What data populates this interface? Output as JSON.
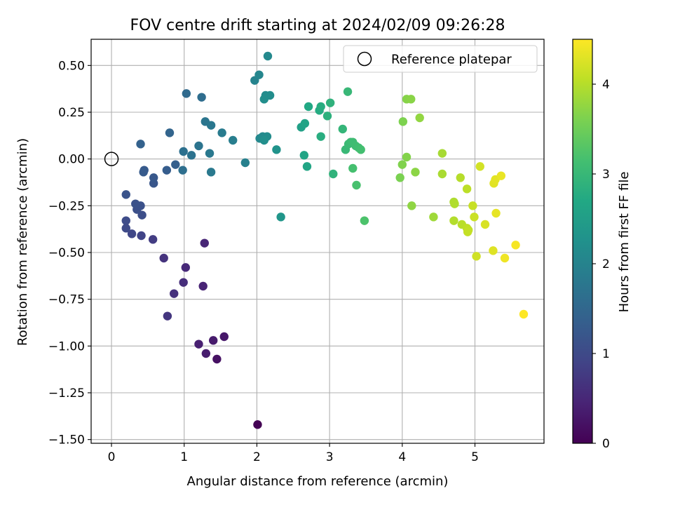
{
  "chart_data": {
    "type": "scatter",
    "title": "FOV centre drift starting at 2024/02/09 09:26:28",
    "xlabel": "Angular distance from reference (arcmin)",
    "ylabel": "Rotation from reference (arcmin)",
    "xlim": [
      -0.28,
      5.95
    ],
    "ylim": [
      -1.52,
      0.64
    ],
    "xticks": [
      0,
      1,
      2,
      3,
      4,
      5
    ],
    "xtick_labels": [
      "0",
      "1",
      "2",
      "3",
      "4",
      "5"
    ],
    "yticks": [
      -1.5,
      -1.25,
      -1.0,
      -0.75,
      -0.5,
      -0.25,
      0.0,
      0.25,
      0.5
    ],
    "ytick_labels": [
      "−1.50",
      "−1.25",
      "−1.00",
      "−0.75",
      "−0.50",
      "−0.25",
      "0.00",
      "0.25",
      "0.50"
    ],
    "grid": true,
    "legend": {
      "position": "top-right",
      "label": "Reference platepar"
    },
    "reference_point": {
      "x": 0,
      "y": 0
    },
    "colorbar": {
      "label": "Hours from first FF file",
      "colormap": "viridis",
      "range": [
        0,
        4.5
      ],
      "ticks": [
        0,
        1,
        2,
        3,
        4
      ],
      "tick_labels": [
        "0",
        "1",
        "2",
        "3",
        "4"
      ]
    },
    "points": [
      {
        "x": 2.01,
        "y": -1.42,
        "t": 0.0
      },
      {
        "x": 1.45,
        "y": -1.07,
        "t": 0.2
      },
      {
        "x": 1.55,
        "y": -0.95,
        "t": 0.28
      },
      {
        "x": 1.4,
        "y": -0.97,
        "t": 0.33
      },
      {
        "x": 1.3,
        "y": -1.04,
        "t": 0.36
      },
      {
        "x": 1.2,
        "y": -0.99,
        "t": 0.4
      },
      {
        "x": 1.26,
        "y": -0.68,
        "t": 0.45
      },
      {
        "x": 1.28,
        "y": -0.45,
        "t": 0.48
      },
      {
        "x": 1.02,
        "y": -0.58,
        "t": 0.52
      },
      {
        "x": 0.99,
        "y": -0.66,
        "t": 0.58
      },
      {
        "x": 0.86,
        "y": -0.72,
        "t": 0.62
      },
      {
        "x": 0.72,
        "y": -0.53,
        "t": 0.66
      },
      {
        "x": 0.77,
        "y": -0.84,
        "t": 0.7
      },
      {
        "x": 0.57,
        "y": -0.43,
        "t": 0.8
      },
      {
        "x": 0.41,
        "y": -0.41,
        "t": 0.9
      },
      {
        "x": 0.28,
        "y": -0.4,
        "t": 0.95
      },
      {
        "x": 0.2,
        "y": -0.37,
        "t": 1.0
      },
      {
        "x": 0.2,
        "y": -0.33,
        "t": 1.03
      },
      {
        "x": 0.42,
        "y": -0.3,
        "t": 1.06
      },
      {
        "x": 0.35,
        "y": -0.27,
        "t": 1.1
      },
      {
        "x": 0.4,
        "y": -0.25,
        "t": 1.12
      },
      {
        "x": 0.33,
        "y": -0.24,
        "t": 1.14
      },
      {
        "x": 0.2,
        "y": -0.19,
        "t": 1.17
      },
      {
        "x": 0.58,
        "y": -0.13,
        "t": 1.2
      },
      {
        "x": 0.58,
        "y": -0.1,
        "t": 1.23
      },
      {
        "x": 0.45,
        "y": -0.06,
        "t": 1.26
      },
      {
        "x": 0.44,
        "y": -0.07,
        "t": 1.28
      },
      {
        "x": 0.76,
        "y": -0.06,
        "t": 1.32
      },
      {
        "x": 0.88,
        "y": -0.03,
        "t": 1.36
      },
      {
        "x": 0.4,
        "y": 0.08,
        "t": 1.4
      },
      {
        "x": 0.8,
        "y": 0.14,
        "t": 1.45
      },
      {
        "x": 1.03,
        "y": 0.35,
        "t": 1.55
      },
      {
        "x": 1.24,
        "y": 0.33,
        "t": 1.6
      },
      {
        "x": 0.98,
        "y": -0.06,
        "t": 1.63
      },
      {
        "x": 0.99,
        "y": 0.04,
        "t": 1.66
      },
      {
        "x": 1.1,
        "y": 0.02,
        "t": 1.7
      },
      {
        "x": 1.2,
        "y": 0.07,
        "t": 1.72
      },
      {
        "x": 1.29,
        "y": 0.2,
        "t": 1.75
      },
      {
        "x": 1.37,
        "y": 0.18,
        "t": 1.78
      },
      {
        "x": 1.35,
        "y": 0.03,
        "t": 1.8
      },
      {
        "x": 1.37,
        "y": -0.07,
        "t": 1.82
      },
      {
        "x": 1.52,
        "y": 0.14,
        "t": 1.85
      },
      {
        "x": 1.67,
        "y": 0.1,
        "t": 1.9
      },
      {
        "x": 1.84,
        "y": -0.02,
        "t": 1.95
      },
      {
        "x": 1.97,
        "y": 0.42,
        "t": 2.0
      },
      {
        "x": 2.03,
        "y": 0.45,
        "t": 2.05
      },
      {
        "x": 2.15,
        "y": 0.55,
        "t": 2.1
      },
      {
        "x": 2.12,
        "y": 0.34,
        "t": 2.15
      },
      {
        "x": 2.18,
        "y": 0.34,
        "t": 2.18
      },
      {
        "x": 2.1,
        "y": 0.32,
        "t": 2.2
      },
      {
        "x": 2.04,
        "y": 0.11,
        "t": 2.08
      },
      {
        "x": 2.08,
        "y": 0.12,
        "t": 2.12
      },
      {
        "x": 2.14,
        "y": 0.12,
        "t": 2.16
      },
      {
        "x": 2.1,
        "y": 0.1,
        "t": 2.22
      },
      {
        "x": 2.27,
        "y": 0.05,
        "t": 2.28
      },
      {
        "x": 2.33,
        "y": -0.31,
        "t": 2.35
      },
      {
        "x": 2.61,
        "y": 0.17,
        "t": 2.55
      },
      {
        "x": 2.66,
        "y": 0.19,
        "t": 2.6
      },
      {
        "x": 2.65,
        "y": 0.02,
        "t": 2.62
      },
      {
        "x": 2.69,
        "y": -0.04,
        "t": 2.65
      },
      {
        "x": 2.71,
        "y": 0.28,
        "t": 2.7
      },
      {
        "x": 2.86,
        "y": 0.26,
        "t": 2.75
      },
      {
        "x": 2.88,
        "y": 0.28,
        "t": 2.78
      },
      {
        "x": 2.88,
        "y": 0.12,
        "t": 2.8
      },
      {
        "x": 2.97,
        "y": 0.23,
        "t": 2.85
      },
      {
        "x": 3.01,
        "y": 0.3,
        "t": 2.88
      },
      {
        "x": 3.05,
        "y": -0.08,
        "t": 2.9
      },
      {
        "x": 3.18,
        "y": 0.16,
        "t": 2.95
      },
      {
        "x": 3.25,
        "y": 0.36,
        "t": 3.0
      },
      {
        "x": 3.22,
        "y": 0.05,
        "t": 3.02
      },
      {
        "x": 3.26,
        "y": 0.08,
        "t": 3.04
      },
      {
        "x": 3.29,
        "y": 0.09,
        "t": 3.06
      },
      {
        "x": 3.32,
        "y": 0.09,
        "t": 3.08
      },
      {
        "x": 3.36,
        "y": 0.07,
        "t": 3.1
      },
      {
        "x": 3.4,
        "y": 0.06,
        "t": 3.12
      },
      {
        "x": 3.43,
        "y": 0.05,
        "t": 3.14
      },
      {
        "x": 3.32,
        "y": -0.05,
        "t": 3.16
      },
      {
        "x": 3.37,
        "y": -0.14,
        "t": 3.18
      },
      {
        "x": 3.48,
        "y": -0.33,
        "t": 3.22
      },
      {
        "x": 3.97,
        "y": -0.1,
        "t": 3.6
      },
      {
        "x": 4.01,
        "y": 0.2,
        "t": 3.62
      },
      {
        "x": 4.0,
        "y": -0.03,
        "t": 3.64
      },
      {
        "x": 4.06,
        "y": 0.01,
        "t": 3.66
      },
      {
        "x": 4.06,
        "y": 0.32,
        "t": 3.68
      },
      {
        "x": 4.12,
        "y": 0.32,
        "t": 3.7
      },
      {
        "x": 4.18,
        "y": -0.07,
        "t": 3.72
      },
      {
        "x": 4.13,
        "y": -0.25,
        "t": 3.74
      },
      {
        "x": 4.24,
        "y": 0.22,
        "t": 3.76
      },
      {
        "x": 4.43,
        "y": -0.31,
        "t": 3.85
      },
      {
        "x": 4.55,
        "y": 0.03,
        "t": 3.9
      },
      {
        "x": 4.55,
        "y": -0.08,
        "t": 3.92
      },
      {
        "x": 4.71,
        "y": -0.23,
        "t": 3.95
      },
      {
        "x": 4.72,
        "y": -0.24,
        "t": 3.97
      },
      {
        "x": 4.71,
        "y": -0.33,
        "t": 3.98
      },
      {
        "x": 4.8,
        "y": -0.1,
        "t": 4.0
      },
      {
        "x": 4.82,
        "y": -0.35,
        "t": 4.02
      },
      {
        "x": 4.89,
        "y": -0.16,
        "t": 4.04
      },
      {
        "x": 4.89,
        "y": -0.37,
        "t": 4.06
      },
      {
        "x": 4.91,
        "y": -0.38,
        "t": 4.08
      },
      {
        "x": 4.9,
        "y": -0.39,
        "t": 4.1
      },
      {
        "x": 4.97,
        "y": -0.25,
        "t": 4.12
      },
      {
        "x": 4.99,
        "y": -0.31,
        "t": 4.14
      },
      {
        "x": 5.02,
        "y": -0.52,
        "t": 4.18
      },
      {
        "x": 5.07,
        "y": -0.04,
        "t": 4.2
      },
      {
        "x": 5.14,
        "y": -0.35,
        "t": 4.24
      },
      {
        "x": 5.25,
        "y": -0.49,
        "t": 4.28
      },
      {
        "x": 5.26,
        "y": -0.13,
        "t": 4.3
      },
      {
        "x": 5.28,
        "y": -0.11,
        "t": 4.32
      },
      {
        "x": 5.29,
        "y": -0.29,
        "t": 4.34
      },
      {
        "x": 5.36,
        "y": -0.09,
        "t": 4.36
      },
      {
        "x": 5.41,
        "y": -0.53,
        "t": 4.4
      },
      {
        "x": 5.56,
        "y": -0.46,
        "t": 4.45
      },
      {
        "x": 5.67,
        "y": -0.83,
        "t": 4.5
      }
    ]
  }
}
